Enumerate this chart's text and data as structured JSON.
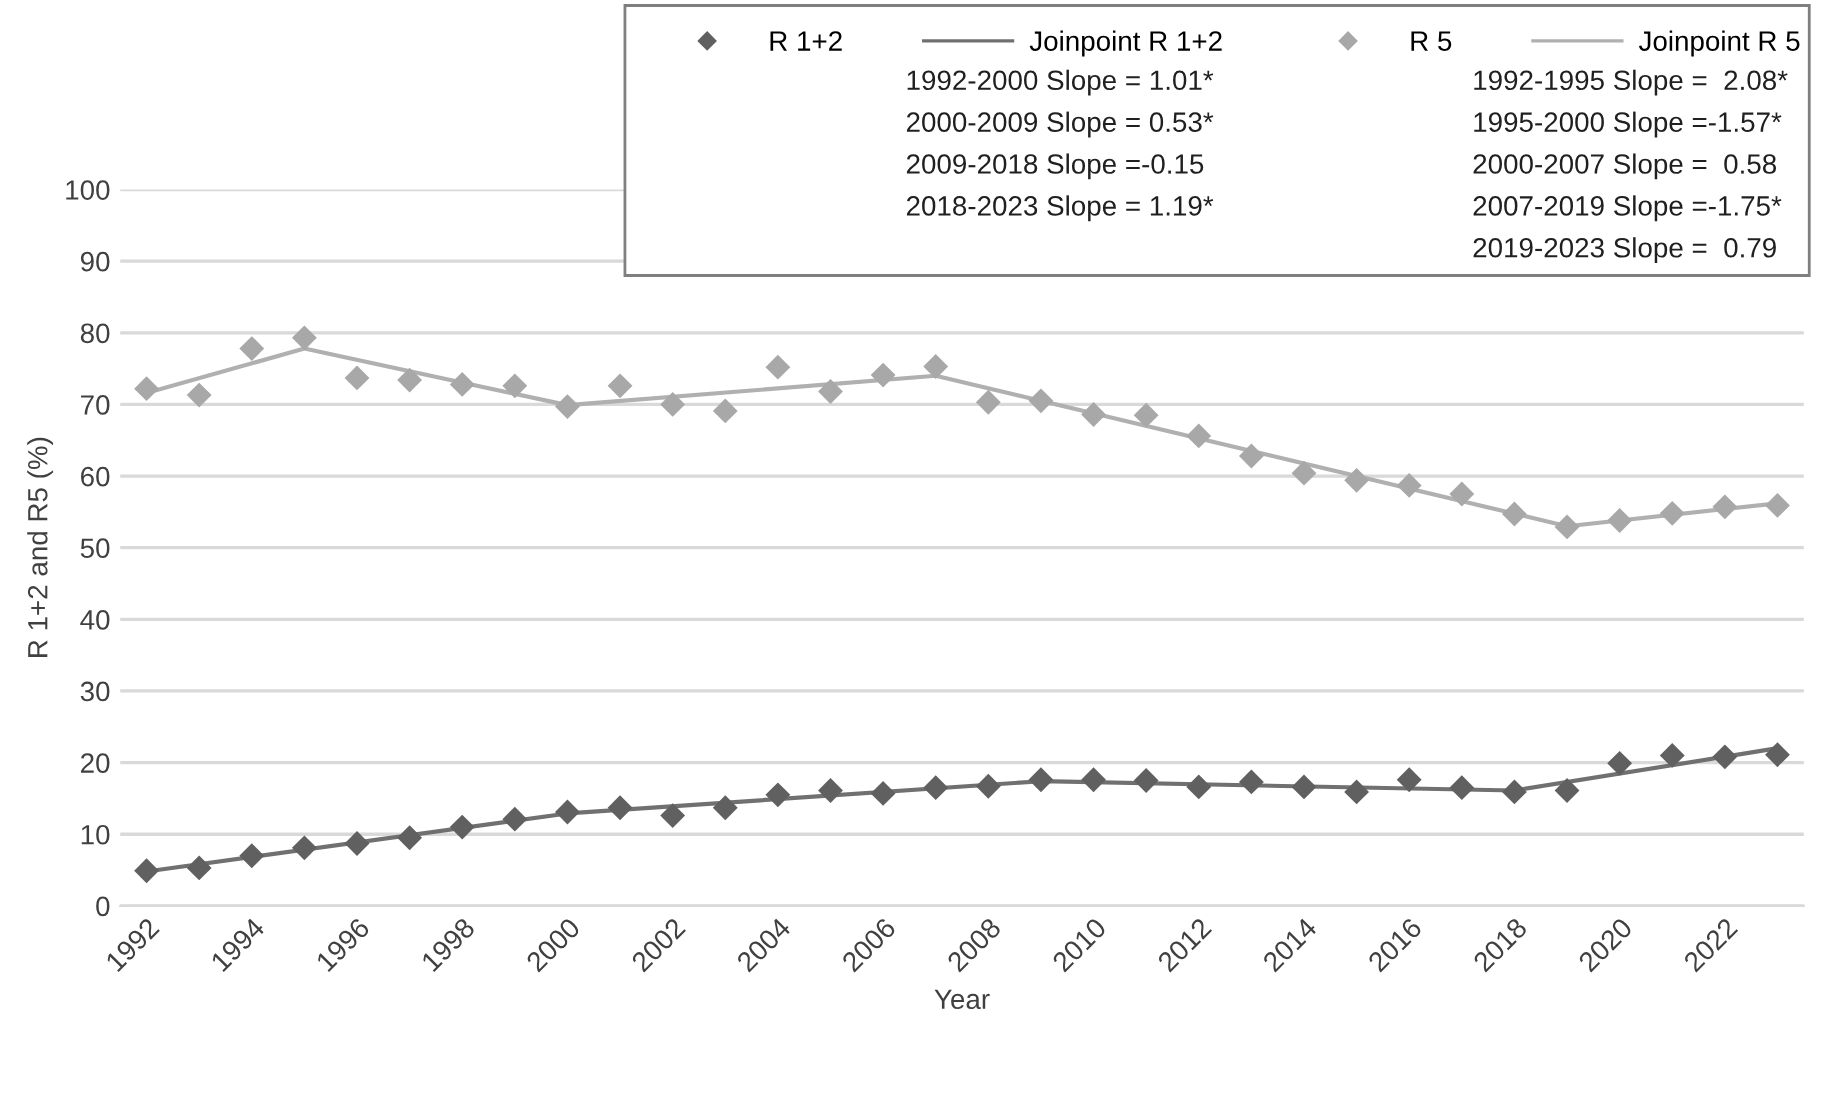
{
  "chart_data": {
    "type": "scatter",
    "xlabel": "Year",
    "ylabel": "R 1+2 and R5 (%)",
    "x": [
      1992,
      1993,
      1994,
      1995,
      1996,
      1997,
      1998,
      1999,
      2000,
      2001,
      2002,
      2003,
      2004,
      2005,
      2006,
      2007,
      2008,
      2009,
      2010,
      2011,
      2012,
      2013,
      2014,
      2015,
      2016,
      2017,
      2018,
      2019,
      2020,
      2021,
      2022,
      2023
    ],
    "series": [
      {
        "name": "R 1+2",
        "marker": "diamond",
        "color": "#606060",
        "values": [
          4.9,
          5.3,
          7.0,
          8.1,
          8.7,
          9.5,
          11.0,
          12.1,
          13.1,
          13.7,
          12.6,
          13.7,
          15.5,
          16.1,
          15.7,
          16.5,
          16.7,
          17.6,
          17.6,
          17.5,
          16.6,
          17.3,
          16.6,
          15.9,
          17.6,
          16.5,
          15.9,
          16.1,
          19.9,
          21.0,
          20.8,
          21.1
        ]
      },
      {
        "name": "Joinpoint R 1+2",
        "type": "line",
        "marker": "none",
        "line_style": "solid",
        "color": "#707070",
        "x": [
          1992,
          2000,
          2009,
          2018,
          2023
        ],
        "values": [
          4.8,
          12.9,
          17.4,
          16.1,
          22.0
        ]
      },
      {
        "name": "R 5",
        "marker": "diamond",
        "color": "#a8a8a8",
        "values": [
          72.2,
          71.3,
          77.8,
          79.3,
          73.7,
          73.4,
          72.8,
          72.6,
          69.7,
          72.6,
          70.0,
          69.1,
          75.2,
          71.8,
          74.1,
          75.3,
          70.3,
          70.5,
          68.6,
          68.5,
          65.6,
          62.8,
          60.4,
          59.4,
          58.7,
          57.5,
          54.7,
          52.9,
          53.8,
          54.8,
          55.7,
          55.9
        ]
      },
      {
        "name": "Joinpoint R 5",
        "type": "line",
        "marker": "none",
        "line_style": "solid",
        "color": "#b0b0b0",
        "x": [
          1992,
          1995,
          2000,
          2007,
          2019,
          2023
        ],
        "values": [
          71.6,
          77.8,
          69.9,
          74.0,
          53.0,
          56.2
        ]
      }
    ],
    "annotations": [
      "1992-2000 Slope = 1.01*",
      "2000-2009 Slope = 0.53*",
      "2009-2018 Slope =-0.15",
      "2018-2023 Slope = 1.19*",
      "1992-1995 Slope =  2.08*",
      "1995-2000 Slope =-1.57*",
      "2000-2007 Slope =  0.58",
      "2007-2019 Slope =-1.75*",
      "2019-2023 Slope =  0.79"
    ],
    "xlim": [
      1991.5,
      2023.5
    ],
    "xticks": [
      1992,
      1994,
      1996,
      1998,
      2000,
      2002,
      2004,
      2006,
      2008,
      2010,
      2012,
      2014,
      2016,
      2018,
      2020,
      2022
    ],
    "ylim": [
      0,
      100
    ],
    "yticks": [
      0,
      10,
      20,
      30,
      40,
      50,
      60,
      70,
      80,
      90,
      100
    ],
    "grid": "y",
    "legend": "top right"
  }
}
